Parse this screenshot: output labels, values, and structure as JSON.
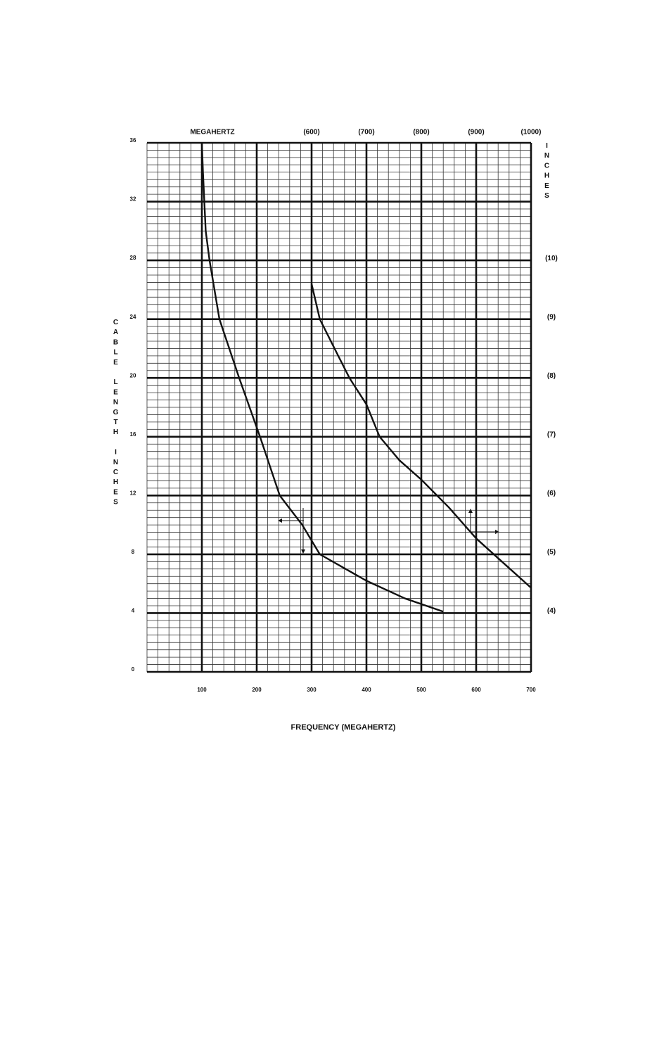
{
  "chart_data": {
    "type": "line",
    "title": "MEGAHERTZ",
    "x_label": "FREQUENCY (MEGAHERTZ)",
    "y_label": "CABLE LENGTH INCHES",
    "y2_label": "INCHES",
    "xlim": [
      0,
      700
    ],
    "xticks": [
      100,
      200,
      300,
      400,
      500,
      600,
      700
    ],
    "ylim": [
      0,
      36
    ],
    "yticks": [
      0,
      4,
      8,
      12,
      16,
      20,
      24,
      28,
      32,
      36
    ],
    "x2lim": [
      300,
      1000
    ],
    "x2ticks": [
      {
        "value": 600,
        "label": "(600)"
      },
      {
        "value": 700,
        "label": "(700)"
      },
      {
        "value": 800,
        "label": "(800)"
      },
      {
        "value": 900,
        "label": "(900)"
      },
      {
        "value": 1000,
        "label": "(1000)"
      }
    ],
    "y2lim": [
      3,
      12
    ],
    "y2ticks": [
      {
        "value": 4,
        "label": "(4)"
      },
      {
        "value": 5,
        "label": "(5)"
      },
      {
        "value": 6,
        "label": "(6)"
      },
      {
        "value": 7,
        "label": "(7)"
      },
      {
        "value": 8,
        "label": "(8)"
      },
      {
        "value": 9,
        "label": "(9)"
      },
      {
        "value": 10,
        "label": "(10)"
      }
    ],
    "grid": true,
    "series": [
      {
        "color": "#111111",
        "x": [
          100,
          102,
          107,
          114,
          132,
          168,
          206,
          242,
          283,
          315,
          400,
          470,
          540
        ],
        "values": [
          36,
          34,
          30,
          28,
          24,
          20,
          16,
          12,
          10,
          8,
          6.2,
          5,
          4.1
        ]
      },
      {
        "color": "#111111",
        "axis": "y2",
        "x": [
          600,
          615,
          650,
          669,
          700,
          724,
          760,
          800,
          850,
          900,
          950,
          1000
        ],
        "values": [
          9.6,
          9,
          8.35,
          8,
          7.55,
          7,
          6.6,
          6.27,
          5.8,
          5.27,
          4.85,
          4.43
        ]
      }
    ]
  }
}
